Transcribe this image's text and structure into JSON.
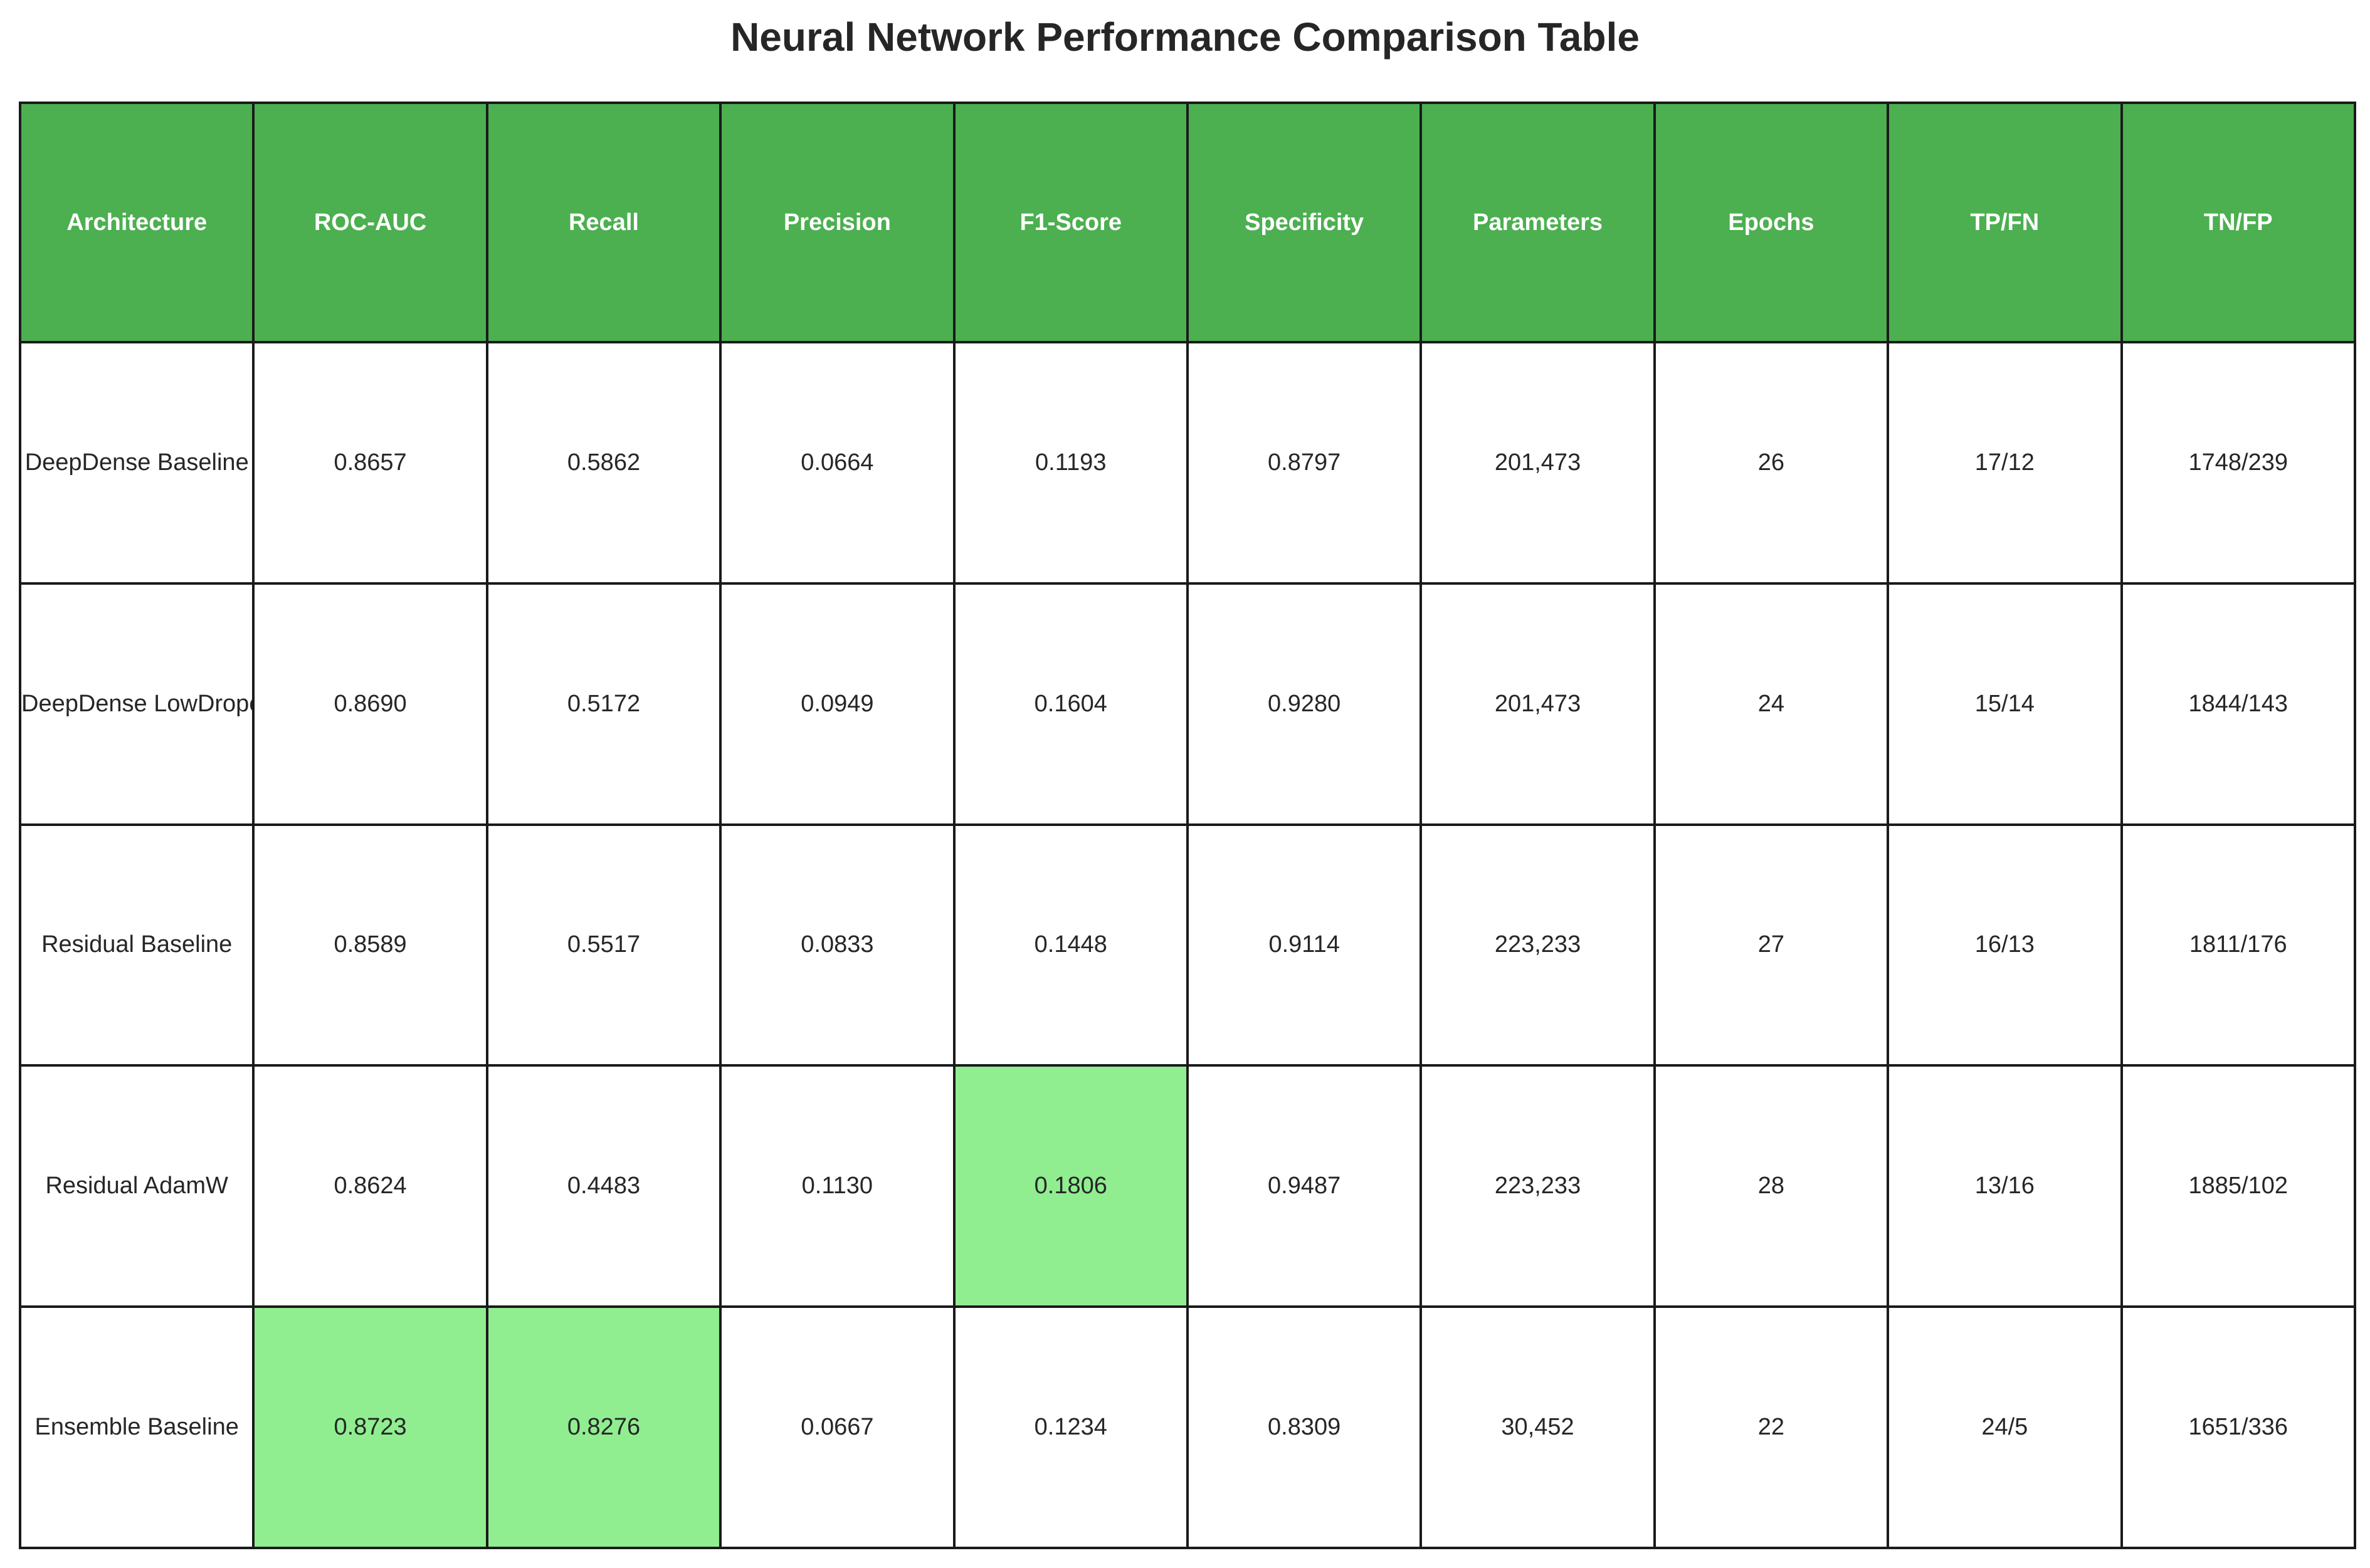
{
  "chart_data": {
    "type": "table",
    "title": "Neural Network Performance Comparison Table",
    "columns": [
      "Architecture",
      "ROC-AUC",
      "Recall",
      "Precision",
      "F1-Score",
      "Specificity",
      "Parameters",
      "Epochs",
      "TP/FN",
      "TN/FP"
    ],
    "rows": [
      [
        "DeepDense Baseline",
        "0.8657",
        "0.5862",
        "0.0664",
        "0.1193",
        "0.8797",
        "201,473",
        "26",
        "17/12",
        "1748/239"
      ],
      [
        "DeepDense LowDropout",
        "0.8690",
        "0.5172",
        "0.0949",
        "0.1604",
        "0.9280",
        "201,473",
        "24",
        "15/14",
        "1844/143"
      ],
      [
        "Residual Baseline",
        "0.8589",
        "0.5517",
        "0.0833",
        "0.1448",
        "0.9114",
        "223,233",
        "27",
        "16/13",
        "1811/176"
      ],
      [
        "Residual AdamW",
        "0.8624",
        "0.4483",
        "0.1130",
        "0.1806",
        "0.9487",
        "223,233",
        "28",
        "13/16",
        "1885/102"
      ],
      [
        "Ensemble Baseline",
        "0.8723",
        "0.8276",
        "0.0667",
        "0.1234",
        "0.8309",
        "30,452",
        "22",
        "24/5",
        "1651/336"
      ]
    ],
    "highlighted_cells": [
      {
        "row": 3,
        "col": 4
      },
      {
        "row": 4,
        "col": 1
      },
      {
        "row": 4,
        "col": 2
      }
    ],
    "colors": {
      "header_bg": "#4caf50",
      "header_text": "#ffffff",
      "highlight_bg": "#90ee90",
      "cell_bg": "#ffffff",
      "border": "#1a1a1a"
    }
  }
}
